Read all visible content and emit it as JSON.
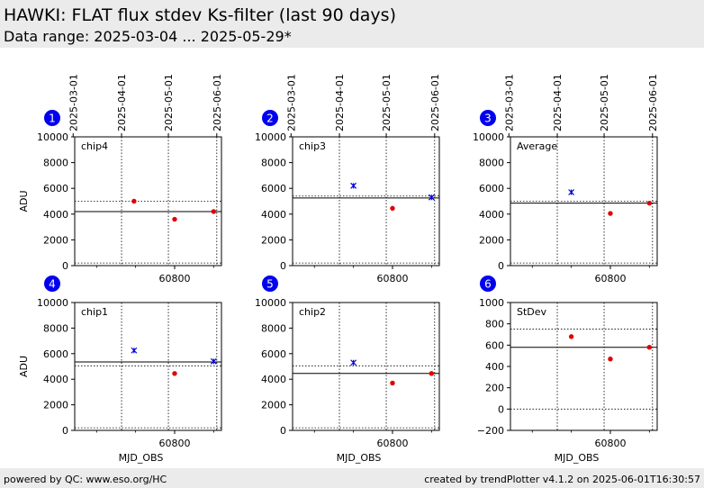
{
  "header": {
    "title": "HAWKI: FLAT flux stdev Ks-filter (last 90 days)",
    "subtitle": "Data range: 2025-03-04 ... 2025-05-29*"
  },
  "footer": {
    "left": "powered by QC: www.eso.org/HC",
    "right": "created by trendPlotter v4.1.2 on 2025-06-01T16:30:57"
  },
  "chart_data": [
    {
      "type": "scatter",
      "badge": "1",
      "panel_label": "chip4",
      "ylabel": "ADU",
      "xlabel": "",
      "ylim": [
        0,
        10000
      ],
      "yticks": [
        0,
        2000,
        4000,
        6000,
        8000,
        10000
      ],
      "xlim": [
        60736,
        60830
      ],
      "xticks": [
        60800
      ],
      "x_minor_ticks": [
        60750,
        60775,
        60825
      ],
      "top_axis_dates": [
        "2025-03-01",
        "2025-04-01",
        "2025-05-01",
        "2025-06-01"
      ],
      "top_axis_mjd": [
        60735,
        60766,
        60796,
        60827
      ],
      "reference_lines": {
        "mean": 4200,
        "upper_limit": 5000,
        "lower_limit": 200
      },
      "series": [
        {
          "marker": "circle",
          "color": "#e00000",
          "x": [
            60774,
            60800,
            60825
          ],
          "y": [
            5000,
            3600,
            4200
          ]
        }
      ]
    },
    {
      "type": "scatter",
      "badge": "2",
      "panel_label": "chip3",
      "ylabel": "",
      "xlabel": "",
      "ylim": [
        0,
        10000
      ],
      "yticks": [
        0,
        2000,
        4000,
        6000,
        8000,
        10000
      ],
      "xlim": [
        60736,
        60830
      ],
      "xticks": [
        60800
      ],
      "x_minor_ticks": [
        60750,
        60775,
        60825
      ],
      "top_axis_dates": [
        "2025-03-01",
        "2025-04-01",
        "2025-05-01",
        "2025-06-01"
      ],
      "top_axis_mjd": [
        60735,
        60766,
        60796,
        60827
      ],
      "reference_lines": {
        "mean": 5250,
        "upper_limit": 5400,
        "lower_limit": 200
      },
      "series": [
        {
          "marker": "x",
          "color": "#0000dd",
          "x": [
            60775,
            60825
          ],
          "y": [
            6200,
            5300
          ]
        },
        {
          "marker": "circle",
          "color": "#e00000",
          "x": [
            60800
          ],
          "y": [
            4450
          ]
        }
      ]
    },
    {
      "type": "scatter",
      "badge": "3",
      "panel_label": "Average",
      "ylabel": "",
      "xlabel": "",
      "ylim": [
        0,
        10000
      ],
      "yticks": [
        0,
        2000,
        4000,
        6000,
        8000,
        10000
      ],
      "xlim": [
        60736,
        60830
      ],
      "xticks": [
        60800
      ],
      "x_minor_ticks": [
        60750,
        60775,
        60825
      ],
      "top_axis_dates": [
        "2025-03-01",
        "2025-04-01",
        "2025-05-01",
        "2025-06-01"
      ],
      "top_axis_mjd": [
        60735,
        60766,
        60796,
        60827
      ],
      "reference_lines": {
        "mean": 4850,
        "upper_limit": 5000,
        "lower_limit": 200
      },
      "series": [
        {
          "marker": "x",
          "color": "#0000dd",
          "x": [
            60775
          ],
          "y": [
            5700
          ]
        },
        {
          "marker": "circle",
          "color": "#e00000",
          "x": [
            60800,
            60825
          ],
          "y": [
            4050,
            4850
          ]
        }
      ]
    },
    {
      "type": "scatter",
      "badge": "4",
      "panel_label": "chip1",
      "ylabel": "ADU",
      "xlabel": "MJD_OBS",
      "ylim": [
        0,
        10000
      ],
      "yticks": [
        0,
        2000,
        4000,
        6000,
        8000,
        10000
      ],
      "xlim": [
        60736,
        60830
      ],
      "xticks": [
        60800
      ],
      "x_minor_ticks": [
        60750,
        60775,
        60825
      ],
      "top_axis_dates": [],
      "top_axis_mjd": [
        60735,
        60766,
        60796,
        60827
      ],
      "reference_lines": {
        "mean": 5350,
        "upper_limit": 5050,
        "lower_limit": 200
      },
      "series": [
        {
          "marker": "x",
          "color": "#0000dd",
          "x": [
            60774,
            60825
          ],
          "y": [
            6250,
            5400
          ]
        },
        {
          "marker": "circle",
          "color": "#e00000",
          "x": [
            60800
          ],
          "y": [
            4450
          ]
        }
      ]
    },
    {
      "type": "scatter",
      "badge": "5",
      "panel_label": "chip2",
      "ylabel": "",
      "xlabel": "MJD_OBS",
      "ylim": [
        0,
        10000
      ],
      "yticks": [
        0,
        2000,
        4000,
        6000,
        8000,
        10000
      ],
      "xlim": [
        60736,
        60830
      ],
      "xticks": [
        60800
      ],
      "x_minor_ticks": [
        60750,
        60775,
        60825
      ],
      "top_axis_dates": [],
      "top_axis_mjd": [
        60735,
        60766,
        60796,
        60827
      ],
      "reference_lines": {
        "mean": 4450,
        "upper_limit": 5050,
        "lower_limit": 200
      },
      "series": [
        {
          "marker": "x",
          "color": "#0000dd",
          "x": [
            60775
          ],
          "y": [
            5300
          ]
        },
        {
          "marker": "circle",
          "color": "#e00000",
          "x": [
            60800,
            60825
          ],
          "y": [
            3700,
            4450
          ]
        }
      ]
    },
    {
      "type": "scatter",
      "badge": "6",
      "panel_label": "StDev",
      "ylabel": "",
      "xlabel": "MJD_OBS",
      "ylim": [
        -200,
        1000
      ],
      "yticks": [
        -200,
        0,
        200,
        400,
        600,
        800,
        1000
      ],
      "xlim": [
        60736,
        60830
      ],
      "xticks": [
        60800
      ],
      "x_minor_ticks": [
        60750,
        60775,
        60825
      ],
      "top_axis_dates": [],
      "top_axis_mjd": [
        60735,
        60766,
        60796,
        60827
      ],
      "reference_lines": {
        "mean": 580,
        "upper_limit": 750,
        "lower_limit": 0
      },
      "series": [
        {
          "marker": "circle",
          "color": "#e00000",
          "x": [
            60775,
            60800,
            60825
          ],
          "y": [
            680,
            470,
            580
          ]
        }
      ]
    }
  ]
}
